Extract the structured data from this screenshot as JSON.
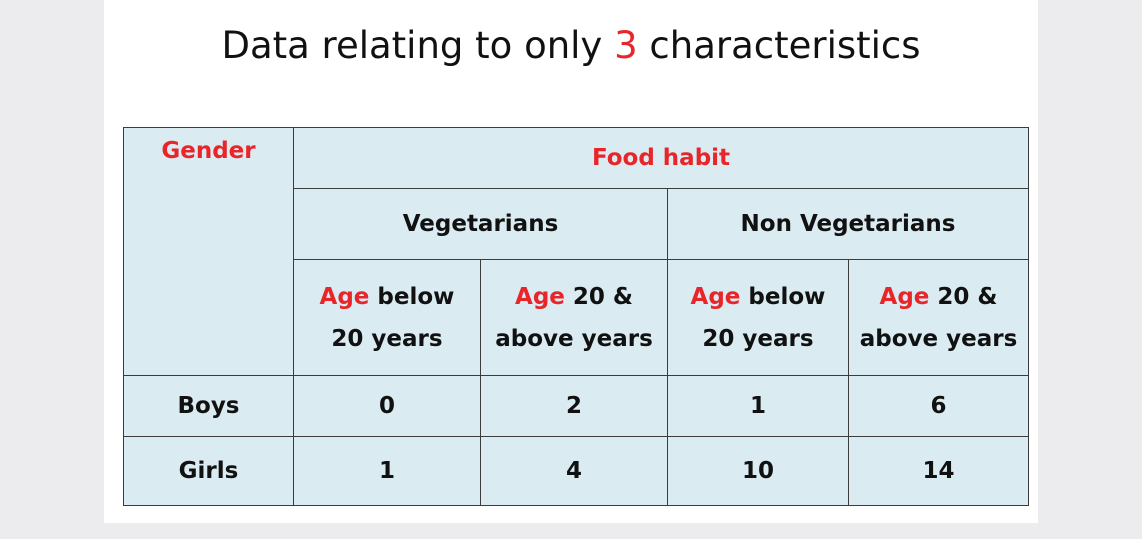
{
  "title": {
    "before": "Data relating to only ",
    "number": "3",
    "after": " characteristics"
  },
  "table": {
    "gender_header": "Gender",
    "food_habit_header": "Food habit",
    "group_vegetarians": "Vegetarians",
    "group_non_vegetarians": "Non Vegetarians",
    "age_word": "Age",
    "age_below_rest_line1": " below",
    "age_below_line2": "20 years",
    "age_above_rest_line1": " 20 &",
    "age_above_line2": "above years",
    "rows": [
      {
        "label": "Boys",
        "values": [
          "0",
          "2",
          "1",
          "6"
        ]
      },
      {
        "label": "Girls",
        "values": [
          "1",
          "4",
          "10",
          "14"
        ]
      }
    ]
  },
  "colors": {
    "highlight": "#e8262a",
    "table_fill": "#daecf2",
    "border": "#3c3c3c"
  }
}
